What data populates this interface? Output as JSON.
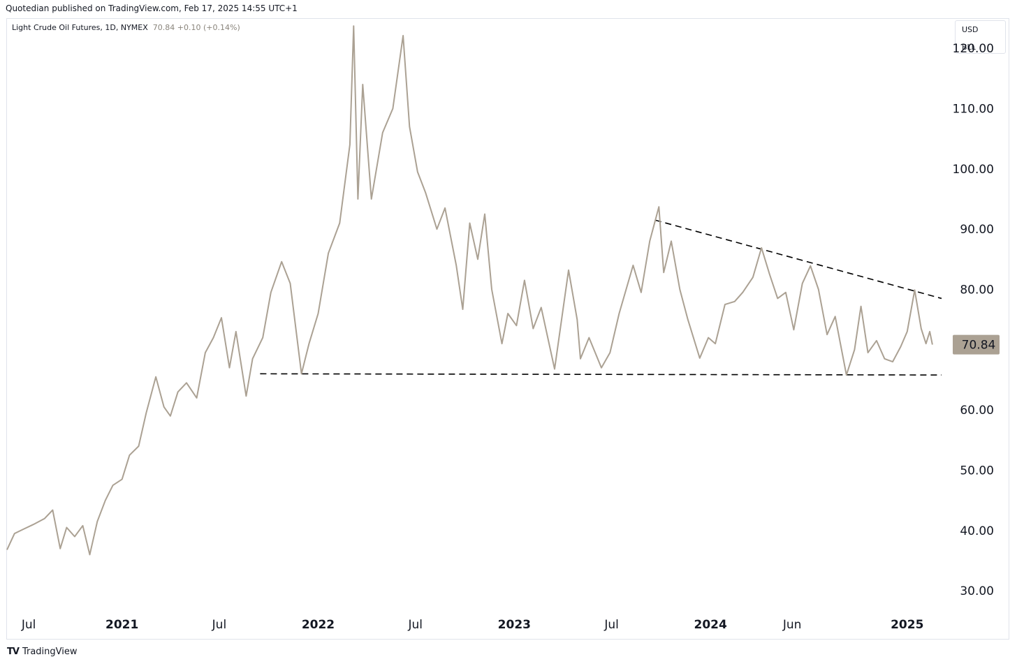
{
  "header": {
    "publisher": "Quotedian published on TradingView.com, Feb 17, 2025 14:55 UTC+1"
  },
  "legend": {
    "symbol": "Light Crude Oil Futures, 1D, NYMEX",
    "last": "70.84",
    "change": "+0.10 (+0.14%)"
  },
  "unit_box": {
    "currency": "USD",
    "unit": "BLL"
  },
  "price_label": "70.84",
  "footer": {
    "brand": "TradingView",
    "logo": "TV"
  },
  "colors": {
    "line": "#aba193",
    "price_badge": "#aba193",
    "trendline": "#000000"
  },
  "chart_data": {
    "type": "line",
    "title": "Light Crude Oil Futures, 1D, NYMEX",
    "xlabel": "",
    "ylabel": "",
    "y_ticks": [
      "120.00",
      "110.00",
      "100.00",
      "90.00",
      "80.00",
      "70.00",
      "60.00",
      "50.00",
      "40.00",
      "30.00"
    ],
    "y_tick_values": [
      120,
      110,
      100,
      90,
      80,
      70,
      60,
      50,
      40,
      30
    ],
    "ylim": [
      25.5,
      125
    ],
    "xlim": [
      "2020-06-01",
      "2025-03-06"
    ],
    "x_ticks": [
      {
        "label": "Jul",
        "date": "2020-07-01",
        "bold": false
      },
      {
        "label": "2021",
        "date": "2021-01-01",
        "bold": true
      },
      {
        "label": "Jul",
        "date": "2021-07-01",
        "bold": false
      },
      {
        "label": "2022",
        "date": "2022-01-01",
        "bold": true
      },
      {
        "label": "Jul",
        "date": "2022-07-01",
        "bold": false
      },
      {
        "label": "2023",
        "date": "2023-01-01",
        "bold": true
      },
      {
        "label": "Jul",
        "date": "2023-07-01",
        "bold": false
      },
      {
        "label": "2024",
        "date": "2024-01-01",
        "bold": true
      },
      {
        "label": "Jun",
        "date": "2024-06-01",
        "bold": false
      },
      {
        "label": "2025",
        "date": "2025-01-01",
        "bold": true
      }
    ],
    "grid": false,
    "last_value": 70.84,
    "series": [
      {
        "values": [
          [
            "2020-06-01",
            36.8
          ],
          [
            "2020-06-15",
            39.5
          ],
          [
            "2020-07-01",
            40.2
          ],
          [
            "2020-07-20",
            41.0
          ],
          [
            "2020-08-10",
            42.0
          ],
          [
            "2020-08-25",
            43.4
          ],
          [
            "2020-09-08",
            37.0
          ],
          [
            "2020-09-20",
            40.5
          ],
          [
            "2020-10-05",
            39.0
          ],
          [
            "2020-10-20",
            40.8
          ],
          [
            "2020-11-02",
            36.0
          ],
          [
            "2020-11-16",
            41.5
          ],
          [
            "2020-12-01",
            45.0
          ],
          [
            "2020-12-15",
            47.5
          ],
          [
            "2021-01-01",
            48.5
          ],
          [
            "2021-01-15",
            52.5
          ],
          [
            "2021-02-01",
            54.0
          ],
          [
            "2021-02-15",
            59.5
          ],
          [
            "2021-03-05",
            65.5
          ],
          [
            "2021-03-20",
            60.5
          ],
          [
            "2021-04-01",
            59.0
          ],
          [
            "2021-04-15",
            63.0
          ],
          [
            "2021-05-01",
            64.5
          ],
          [
            "2021-05-20",
            62.0
          ],
          [
            "2021-06-05",
            69.5
          ],
          [
            "2021-06-20",
            72.0
          ],
          [
            "2021-07-05",
            75.3
          ],
          [
            "2021-07-20",
            67.0
          ],
          [
            "2021-08-01",
            73.0
          ],
          [
            "2021-08-20",
            62.3
          ],
          [
            "2021-09-01",
            68.5
          ],
          [
            "2021-09-20",
            72.0
          ],
          [
            "2021-10-05",
            79.5
          ],
          [
            "2021-10-25",
            84.6
          ],
          [
            "2021-11-10",
            81.0
          ],
          [
            "2021-12-01",
            66.0
          ],
          [
            "2021-12-15",
            71.0
          ],
          [
            "2022-01-01",
            76.0
          ],
          [
            "2022-01-20",
            86.0
          ],
          [
            "2022-02-10",
            91.0
          ],
          [
            "2022-03-01",
            104.0
          ],
          [
            "2022-03-08",
            123.7
          ],
          [
            "2022-03-16",
            95.0
          ],
          [
            "2022-03-25",
            114.0
          ],
          [
            "2022-04-10",
            95.0
          ],
          [
            "2022-05-01",
            106.0
          ],
          [
            "2022-05-20",
            110.0
          ],
          [
            "2022-06-08",
            122.1
          ],
          [
            "2022-06-20",
            107.0
          ],
          [
            "2022-07-05",
            99.5
          ],
          [
            "2022-07-20",
            96.0
          ],
          [
            "2022-08-10",
            90.0
          ],
          [
            "2022-08-25",
            93.5
          ],
          [
            "2022-09-15",
            84.0
          ],
          [
            "2022-09-27",
            76.7
          ],
          [
            "2022-10-10",
            91.0
          ],
          [
            "2022-10-25",
            85.0
          ],
          [
            "2022-11-07",
            92.5
          ],
          [
            "2022-11-20",
            80.0
          ],
          [
            "2022-12-09",
            71.0
          ],
          [
            "2022-12-20",
            76.0
          ],
          [
            "2023-01-05",
            74.0
          ],
          [
            "2023-01-20",
            81.5
          ],
          [
            "2023-02-05",
            73.5
          ],
          [
            "2023-02-20",
            77.0
          ],
          [
            "2023-03-17",
            66.8
          ],
          [
            "2023-04-12",
            83.2
          ],
          [
            "2023-04-28",
            75.0
          ],
          [
            "2023-05-04",
            68.5
          ],
          [
            "2023-05-20",
            72.0
          ],
          [
            "2023-06-12",
            67.0
          ],
          [
            "2023-06-28",
            69.5
          ],
          [
            "2023-07-15",
            76.0
          ],
          [
            "2023-08-10",
            84.0
          ],
          [
            "2023-08-25",
            79.5
          ],
          [
            "2023-09-10",
            88.0
          ],
          [
            "2023-09-27",
            93.7
          ],
          [
            "2023-10-06",
            82.8
          ],
          [
            "2023-10-20",
            88.0
          ],
          [
            "2023-11-05",
            80.0
          ],
          [
            "2023-11-20",
            75.0
          ],
          [
            "2023-12-12",
            68.6
          ],
          [
            "2023-12-28",
            72.0
          ],
          [
            "2024-01-10",
            71.0
          ],
          [
            "2024-01-28",
            77.5
          ],
          [
            "2024-02-15",
            78.0
          ],
          [
            "2024-03-01",
            79.5
          ],
          [
            "2024-03-20",
            82.0
          ],
          [
            "2024-04-05",
            86.9
          ],
          [
            "2024-04-20",
            82.5
          ],
          [
            "2024-05-05",
            78.5
          ],
          [
            "2024-05-20",
            79.5
          ],
          [
            "2024-06-04",
            73.3
          ],
          [
            "2024-06-20",
            81.0
          ],
          [
            "2024-07-05",
            83.9
          ],
          [
            "2024-07-20",
            80.0
          ],
          [
            "2024-08-05",
            72.5
          ],
          [
            "2024-08-20",
            75.5
          ],
          [
            "2024-09-10",
            65.8
          ],
          [
            "2024-09-25",
            70.0
          ],
          [
            "2024-10-07",
            77.2
          ],
          [
            "2024-10-20",
            69.5
          ],
          [
            "2024-11-05",
            71.5
          ],
          [
            "2024-11-20",
            68.5
          ],
          [
            "2024-12-05",
            68.0
          ],
          [
            "2024-12-20",
            70.5
          ],
          [
            "2025-01-01",
            73.0
          ],
          [
            "2025-01-15",
            79.9
          ],
          [
            "2025-01-27",
            73.5
          ],
          [
            "2025-02-05",
            71.0
          ],
          [
            "2025-02-12",
            73.0
          ],
          [
            "2025-02-17",
            70.84
          ]
        ]
      }
    ],
    "trendlines": [
      {
        "from": [
          "2021-09-15",
          66.0
        ],
        "to": [
          "2025-03-06",
          65.8
        ]
      },
      {
        "from": [
          "2023-09-20",
          91.5
        ],
        "to": [
          "2025-03-06",
          78.5
        ]
      }
    ]
  }
}
